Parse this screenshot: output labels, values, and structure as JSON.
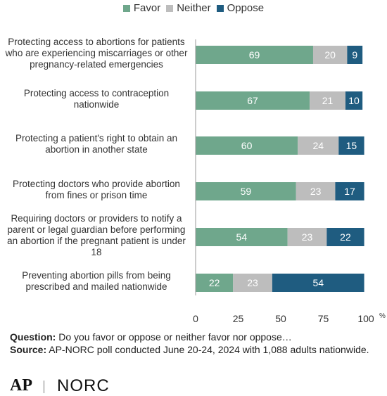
{
  "chart_data": {
    "type": "bar",
    "orientation": "horizontal",
    "stacked": true,
    "categories": [
      "Protecting access to abortions for patients who are experiencing miscarriages or other pregnancy-related emergencies",
      "Protecting access to contraception nationwide",
      "Protecting a patient's right to obtain an abortion in another state",
      "Protecting doctors who provide abortion from fines or prison time",
      "Requiring doctors or providers to notify a parent or legal guardian before performing an abortion if the pregnant patient is under 18",
      "Preventing abortion pills from being prescribed and mailed nationwide"
    ],
    "series": [
      {
        "name": "Favor",
        "color": "#6fa78c",
        "values": [
          69,
          67,
          60,
          59,
          54,
          22
        ]
      },
      {
        "name": "Neither",
        "color": "#bdbdbd",
        "values": [
          20,
          21,
          24,
          23,
          23,
          23
        ]
      },
      {
        "name": "Oppose",
        "color": "#1f5c80",
        "values": [
          9,
          10,
          15,
          17,
          22,
          54
        ]
      }
    ],
    "xlim": [
      0,
      100
    ],
    "xticks": [
      "0",
      "25",
      "50",
      "75",
      "100"
    ],
    "x_unit": "%",
    "legend_position": "top",
    "grid": false
  },
  "footer": {
    "question_label": "Question:",
    "question_text": "Do you favor or oppose or neither favor nor oppose…",
    "source_label": "Source:",
    "source_text": "AP-NORC poll conducted June 20-24, 2024 with 1,088 adults nationwide."
  },
  "logos": {
    "ap": "AP",
    "norc": "NORC"
  }
}
